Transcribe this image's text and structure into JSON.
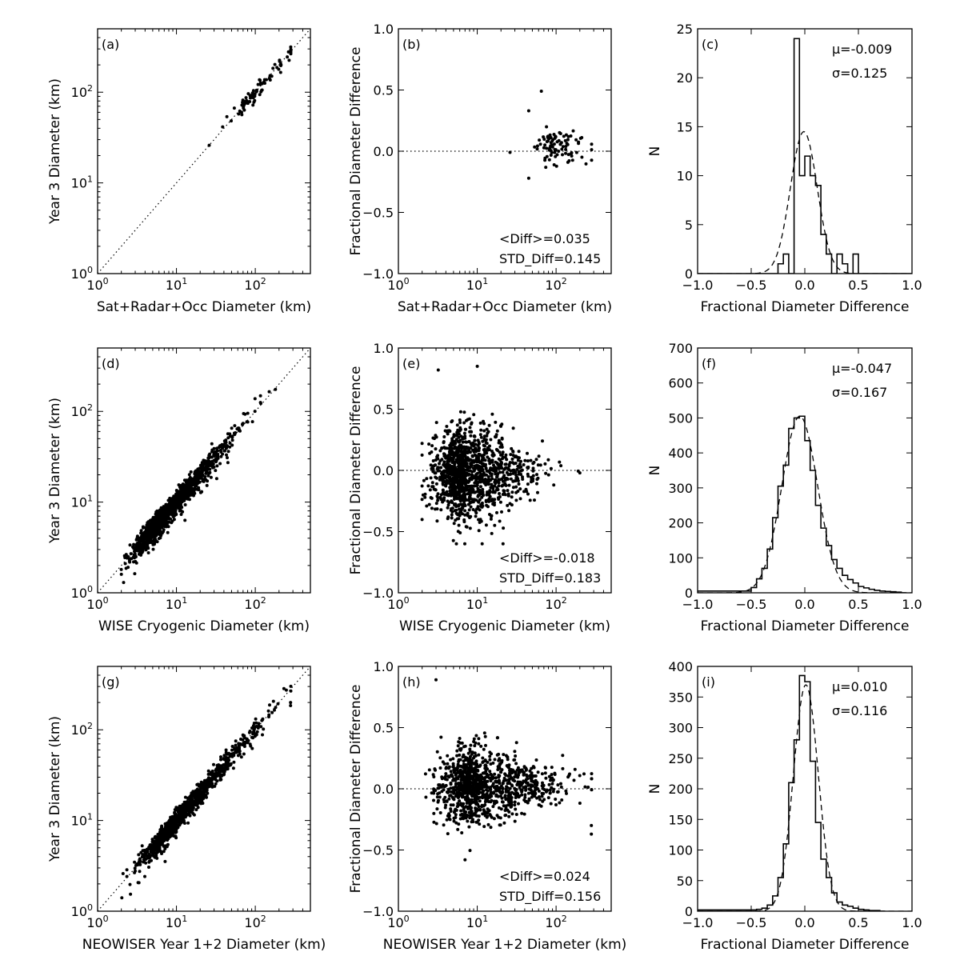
{
  "chart_data": [
    {
      "id": "a",
      "type": "scatter",
      "label": "(a)",
      "xlabel": "Sat+Radar+Occ Diameter (km)",
      "ylabel": "Year 3 Diameter (km)",
      "xscale": "log",
      "yscale": "log",
      "xlim": [
        1,
        500
      ],
      "ylim": [
        1,
        500
      ],
      "xticks": [
        {
          "v": 1,
          "t": "10",
          "e": "0"
        },
        {
          "v": 10,
          "t": "10",
          "e": "1"
        },
        {
          "v": 100,
          "t": "10",
          "e": "2"
        }
      ],
      "yticks": [
        {
          "v": 1,
          "t": "10",
          "e": "0"
        },
        {
          "v": 10,
          "t": "10",
          "e": "1"
        },
        {
          "v": 100,
          "t": "10",
          "e": "2"
        }
      ],
      "reference_line": "y = x",
      "n_points": 90,
      "x_log_center": 2.0,
      "x_log_spread": 0.18,
      "y_scatter_frac": 0.11,
      "highlight_points": [
        [
          26,
          26
        ],
        [
          210,
          205
        ]
      ]
    },
    {
      "id": "b",
      "type": "scatter",
      "label": "(b)",
      "xlabel": "Sat+Radar+Occ Diameter (km)",
      "ylabel": "Fractional Diameter Difference",
      "xscale": "log",
      "yscale": "linear",
      "xlim": [
        1,
        500
      ],
      "ylim": [
        -1.0,
        1.0
      ],
      "xticks": [
        {
          "v": 1,
          "t": "10",
          "e": "0"
        },
        {
          "v": 10,
          "t": "10",
          "e": "1"
        },
        {
          "v": 100,
          "t": "10",
          "e": "2"
        }
      ],
      "yticks": [
        {
          "v": -1.0,
          "t": "−1.0"
        },
        {
          "v": -0.5,
          "t": "−0.5"
        },
        {
          "v": 0.0,
          "t": "0.0"
        },
        {
          "v": 0.5,
          "t": "0.5"
        },
        {
          "v": 1.0,
          "t": "1.0"
        }
      ],
      "reference_line": "y = 0",
      "n_points": 90,
      "x_log_center": 2.0,
      "x_log_spread": 0.16,
      "y_mean": 0.035,
      "y_std": 0.145,
      "highlight_points": [
        [
          26,
          -0.01
        ],
        [
          65,
          0.49
        ],
        [
          45,
          0.33
        ],
        [
          45,
          -0.22
        ]
      ],
      "stats": [
        "<Diff>=0.035",
        "STD_Diff=0.145"
      ]
    },
    {
      "id": "c",
      "type": "histogram",
      "label": "(c)",
      "xlabel": "Fractional Diameter Difference",
      "ylabel": "N",
      "xlim": [
        -1.0,
        1.0
      ],
      "ylim": [
        0,
        25
      ],
      "xticks": [
        {
          "v": -1.0,
          "t": "−1.0"
        },
        {
          "v": -0.5,
          "t": "−0.5"
        },
        {
          "v": 0.0,
          "t": "0.0"
        },
        {
          "v": 0.5,
          "t": "0.5"
        },
        {
          "v": 1.0,
          "t": "1.0"
        }
      ],
      "yticks": [
        {
          "v": 0,
          "t": "0"
        },
        {
          "v": 5,
          "t": "5"
        },
        {
          "v": 10,
          "t": "10"
        },
        {
          "v": 15,
          "t": "15"
        },
        {
          "v": 20,
          "t": "20"
        },
        {
          "v": 25,
          "t": "25"
        }
      ],
      "bin_edges": [
        -1.0,
        -0.25,
        -0.2,
        -0.15,
        -0.1,
        -0.05,
        0.0,
        0.05,
        0.1,
        0.15,
        0.2,
        0.25,
        0.3,
        0.35,
        0.4,
        0.45,
        0.5,
        1.0
      ],
      "counts": [
        0,
        1,
        2,
        0,
        24,
        10,
        12,
        10,
        9,
        4,
        2,
        0,
        2,
        1,
        0,
        2,
        0
      ],
      "gauss": {
        "mu": -0.009,
        "sigma": 0.125,
        "peak": 14.5
      },
      "stats": [
        "μ=-0.009",
        "σ=0.125"
      ]
    },
    {
      "id": "d",
      "type": "scatter",
      "label": "(d)",
      "xlabel": "WISE Cryogenic Diameter (km)",
      "ylabel": "Year 3 Diameter (km)",
      "xscale": "log",
      "yscale": "log",
      "xlim": [
        1,
        500
      ],
      "ylim": [
        1,
        500
      ],
      "xticks": [
        {
          "v": 1,
          "t": "10",
          "e": "0"
        },
        {
          "v": 10,
          "t": "10",
          "e": "1"
        },
        {
          "v": 100,
          "t": "10",
          "e": "2"
        }
      ],
      "yticks": [
        {
          "v": 1,
          "t": "10",
          "e": "0"
        },
        {
          "v": 10,
          "t": "10",
          "e": "1"
        },
        {
          "v": 100,
          "t": "10",
          "e": "2"
        }
      ],
      "reference_line": "y = x",
      "n_points": 1300,
      "x_log_center": 0.85,
      "x_log_spread": 0.27,
      "y_scatter_frac": 0.16,
      "highlight_points": [
        [
          2.0,
          1.6
        ],
        [
          180,
          175
        ],
        [
          150,
          165
        ]
      ]
    },
    {
      "id": "e",
      "type": "scatter",
      "label": "(e)",
      "xlabel": "WISE Cryogenic Diameter (km)",
      "ylabel": "Fractional Diameter Difference",
      "xscale": "log",
      "yscale": "linear",
      "xlim": [
        1,
        500
      ],
      "ylim": [
        -1.0,
        1.0
      ],
      "xticks": [
        {
          "v": 1,
          "t": "10",
          "e": "0"
        },
        {
          "v": 10,
          "t": "10",
          "e": "1"
        },
        {
          "v": 100,
          "t": "10",
          "e": "2"
        }
      ],
      "yticks": [
        {
          "v": -1.0,
          "t": "−1.0"
        },
        {
          "v": -0.5,
          "t": "−0.5"
        },
        {
          "v": 0.0,
          "t": "0.0"
        },
        {
          "v": 0.5,
          "t": "0.5"
        },
        {
          "v": 1.0,
          "t": "1.0"
        }
      ],
      "reference_line": "y = 0",
      "n_points": 1300,
      "x_log_center": 0.85,
      "x_log_spread": 0.27,
      "y_mean": -0.018,
      "y_std": 0.183,
      "highlight_points": [
        [
          10,
          0.85
        ],
        [
          3.2,
          0.82
        ],
        [
          200,
          -0.02
        ]
      ],
      "stats": [
        "<Diff>=-0.018",
        "STD_Diff=0.183"
      ]
    },
    {
      "id": "f",
      "type": "histogram",
      "label": "(f)",
      "xlabel": "Fractional Diameter Difference",
      "ylabel": "N",
      "xlim": [
        -1.0,
        1.0
      ],
      "ylim": [
        0,
        700
      ],
      "xticks": [
        {
          "v": -1.0,
          "t": "−1.0"
        },
        {
          "v": -0.5,
          "t": "−0.5"
        },
        {
          "v": 0.0,
          "t": "0.0"
        },
        {
          "v": 0.5,
          "t": "0.5"
        },
        {
          "v": 1.0,
          "t": "1.0"
        }
      ],
      "yticks": [
        {
          "v": 0,
          "t": "0"
        },
        {
          "v": 100,
          "t": "100"
        },
        {
          "v": 200,
          "t": "200"
        },
        {
          "v": 300,
          "t": "300"
        },
        {
          "v": 400,
          "t": "400"
        },
        {
          "v": 500,
          "t": "500"
        },
        {
          "v": 600,
          "t": "600"
        },
        {
          "v": 700,
          "t": "700"
        }
      ],
      "bin_edges": [
        -1.0,
        -0.5,
        -0.45,
        -0.4,
        -0.35,
        -0.3,
        -0.25,
        -0.2,
        -0.15,
        -0.1,
        -0.05,
        0.0,
        0.05,
        0.1,
        0.15,
        0.2,
        0.25,
        0.3,
        0.35,
        0.4,
        0.45,
        0.5,
        0.55,
        0.6,
        0.65,
        0.7,
        0.75,
        0.8,
        0.85,
        0.9,
        0.95
      ],
      "counts": [
        5,
        15,
        40,
        70,
        125,
        215,
        305,
        365,
        470,
        500,
        505,
        435,
        350,
        250,
        185,
        135,
        95,
        70,
        50,
        38,
        28,
        18,
        14,
        10,
        7,
        5,
        4,
        3,
        2,
        0
      ],
      "gauss": {
        "mu": -0.047,
        "sigma": 0.167,
        "peak": 505
      },
      "stats": [
        "μ=-0.047",
        "σ=0.167"
      ]
    },
    {
      "id": "g",
      "type": "scatter",
      "label": "(g)",
      "xlabel": "NEOWISER Year 1+2 Diameter (km)",
      "ylabel": "Year 3 Diameter (km)",
      "xscale": "log",
      "yscale": "log",
      "xlim": [
        1,
        500
      ],
      "ylim": [
        1,
        500
      ],
      "xticks": [
        {
          "v": 1,
          "t": "10",
          "e": "0"
        },
        {
          "v": 10,
          "t": "10",
          "e": "1"
        },
        {
          "v": 100,
          "t": "10",
          "e": "2"
        }
      ],
      "yticks": [
        {
          "v": 1,
          "t": "10",
          "e": "0"
        },
        {
          "v": 10,
          "t": "10",
          "e": "1"
        },
        {
          "v": 100,
          "t": "10",
          "e": "2"
        }
      ],
      "reference_line": "y = x",
      "n_points": 1100,
      "x_log_center": 1.0,
      "x_log_spread": 0.32,
      "y_scatter_frac": 0.13,
      "highlight_points": [
        [
          280,
          200
        ],
        [
          280,
          185
        ],
        [
          2.1,
          2.6
        ]
      ]
    },
    {
      "id": "h",
      "type": "scatter",
      "label": "(h)",
      "xlabel": "NEOWISER Year 1+2 Diameter (km)",
      "ylabel": "Fractional Diameter Difference",
      "xscale": "log",
      "yscale": "linear",
      "xlim": [
        1,
        500
      ],
      "ylim": [
        -1.0,
        1.0
      ],
      "xticks": [
        {
          "v": 1,
          "t": "10",
          "e": "0"
        },
        {
          "v": 10,
          "t": "10",
          "e": "1"
        },
        {
          "v": 100,
          "t": "10",
          "e": "2"
        }
      ],
      "yticks": [
        {
          "v": -1.0,
          "t": "−1.0"
        },
        {
          "v": -0.5,
          "t": "−0.5"
        },
        {
          "v": 0.0,
          "t": "0.0"
        },
        {
          "v": 0.5,
          "t": "0.5"
        },
        {
          "v": 1.0,
          "t": "1.0"
        }
      ],
      "reference_line": "y = 0",
      "n_points": 1100,
      "x_log_center": 1.0,
      "x_log_spread": 0.32,
      "y_mean": 0.024,
      "y_std": 0.156,
      "highlight_points": [
        [
          3.0,
          0.89
        ],
        [
          280,
          -0.3
        ],
        [
          280,
          -0.37
        ],
        [
          7.0,
          -0.58
        ]
      ],
      "stats": [
        "<Diff>=0.024",
        "STD_Diff=0.156"
      ]
    },
    {
      "id": "i",
      "type": "histogram",
      "label": "(i)",
      "xlabel": "Fractional Diameter Difference",
      "ylabel": "N",
      "xlim": [
        -1.0,
        1.0
      ],
      "ylim": [
        0,
        400
      ],
      "xticks": [
        {
          "v": -1.0,
          "t": "−1.0"
        },
        {
          "v": -0.5,
          "t": "−0.5"
        },
        {
          "v": 0.0,
          "t": "0.0"
        },
        {
          "v": 0.5,
          "t": "0.5"
        },
        {
          "v": 1.0,
          "t": "1.0"
        }
      ],
      "yticks": [
        {
          "v": 0,
          "t": "0"
        },
        {
          "v": 50,
          "t": "50"
        },
        {
          "v": 100,
          "t": "100"
        },
        {
          "v": 150,
          "t": "150"
        },
        {
          "v": 200,
          "t": "200"
        },
        {
          "v": 250,
          "t": "250"
        },
        {
          "v": 300,
          "t": "300"
        },
        {
          "v": 350,
          "t": "350"
        },
        {
          "v": 400,
          "t": "400"
        }
      ],
      "bin_edges": [
        -1.0,
        -0.45,
        -0.4,
        -0.35,
        -0.3,
        -0.25,
        -0.2,
        -0.15,
        -0.1,
        -0.05,
        0.0,
        0.05,
        0.1,
        0.15,
        0.2,
        0.25,
        0.3,
        0.35,
        0.4,
        0.45,
        0.5,
        0.55,
        0.6,
        0.65,
        0.7,
        0.75
      ],
      "counts": [
        2,
        3,
        5,
        10,
        25,
        55,
        110,
        210,
        280,
        385,
        375,
        245,
        145,
        85,
        55,
        30,
        15,
        10,
        8,
        5,
        3,
        2,
        1,
        1,
        0
      ],
      "gauss": {
        "mu": 0.01,
        "sigma": 0.116,
        "peak": 370
      },
      "stats": [
        "μ=0.010",
        "σ=0.116"
      ]
    }
  ]
}
